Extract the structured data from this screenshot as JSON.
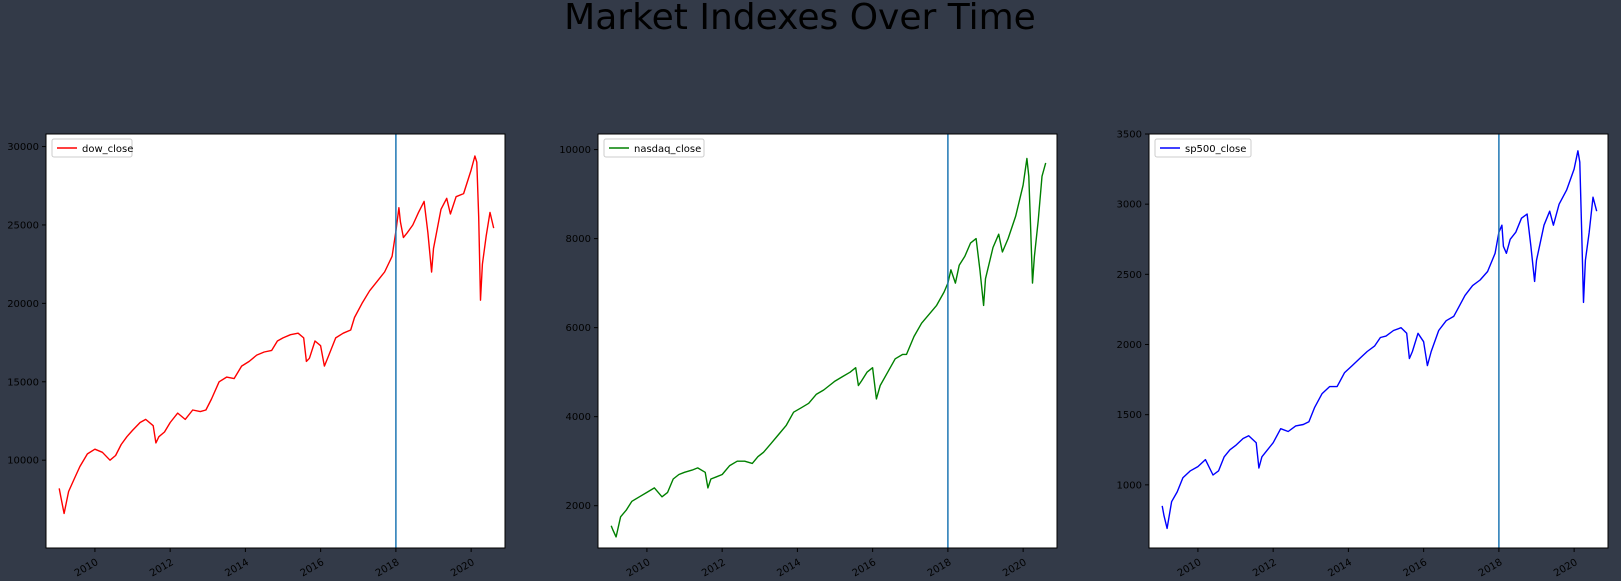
{
  "figure": {
    "title": "Market Indexes Over Time",
    "background": "#333a48",
    "vline_color": "#1f77b4",
    "vline_x": 2018.0
  },
  "chart_data": [
    {
      "type": "line",
      "legend": "dow_close",
      "legend_placement": "top-left",
      "color": "#ff0000",
      "xlim": [
        2008.7,
        2020.9
      ],
      "ylim": [
        4400,
        30800
      ],
      "xticks": [
        2010,
        2012,
        2014,
        2016,
        2018,
        2020
      ],
      "yticks": [
        10000,
        15000,
        20000,
        25000,
        30000
      ],
      "x": [
        2009.05,
        2009.1,
        2009.18,
        2009.3,
        2009.45,
        2009.6,
        2009.8,
        2010.0,
        2010.2,
        2010.4,
        2010.55,
        2010.7,
        2010.85,
        2011.0,
        2011.2,
        2011.35,
        2011.55,
        2011.62,
        2011.7,
        2011.85,
        2012.0,
        2012.2,
        2012.4,
        2012.6,
        2012.8,
        2012.95,
        2013.1,
        2013.3,
        2013.5,
        2013.7,
        2013.9,
        2014.1,
        2014.3,
        2014.5,
        2014.7,
        2014.85,
        2015.0,
        2015.2,
        2015.4,
        2015.55,
        2015.62,
        2015.7,
        2015.85,
        2016.0,
        2016.1,
        2016.2,
        2016.4,
        2016.6,
        2016.8,
        2016.9,
        2017.1,
        2017.3,
        2017.5,
        2017.7,
        2017.9,
        2018.0,
        2018.08,
        2018.12,
        2018.2,
        2018.3,
        2018.45,
        2018.6,
        2018.75,
        2018.85,
        2018.95,
        2019.0,
        2019.2,
        2019.35,
        2019.45,
        2019.6,
        2019.8,
        2020.0,
        2020.1,
        2020.15,
        2020.2,
        2020.25,
        2020.3,
        2020.4,
        2020.5,
        2020.6
      ],
      "y": [
        8200,
        7600,
        6600,
        8000,
        8800,
        9600,
        10400,
        10700,
        10500,
        10000,
        10300,
        11000,
        11500,
        11900,
        12400,
        12600,
        12200,
        11100,
        11500,
        11800,
        12400,
        13000,
        12600,
        13200,
        13100,
        13200,
        13900,
        15000,
        15300,
        15200,
        16000,
        16300,
        16700,
        16900,
        17000,
        17600,
        17800,
        18000,
        18100,
        17800,
        16300,
        16500,
        17600,
        17300,
        16000,
        16600,
        17800,
        18100,
        18300,
        19100,
        20000,
        20800,
        21400,
        22000,
        23000,
        24600,
        26100,
        25200,
        24200,
        24500,
        25000,
        25800,
        26500,
        24500,
        22000,
        23500,
        26000,
        26700,
        25700,
        26800,
        27000,
        28500,
        29400,
        29000,
        25500,
        20200,
        22500,
        24300,
        25800,
        24800
      ]
    },
    {
      "type": "line",
      "legend": "nasdaq_close",
      "legend_placement": "top-left",
      "color": "#008000",
      "xlim": [
        2008.7,
        2020.9
      ],
      "ylim": [
        1050,
        10350
      ],
      "xticks": [
        2010,
        2012,
        2014,
        2016,
        2018,
        2020
      ],
      "yticks": [
        2000,
        4000,
        6000,
        8000,
        10000
      ],
      "x": [
        2009.05,
        2009.1,
        2009.18,
        2009.3,
        2009.45,
        2009.6,
        2009.8,
        2010.0,
        2010.2,
        2010.4,
        2010.55,
        2010.7,
        2010.85,
        2011.0,
        2011.2,
        2011.35,
        2011.55,
        2011.62,
        2011.7,
        2011.85,
        2012.0,
        2012.2,
        2012.4,
        2012.6,
        2012.8,
        2012.95,
        2013.1,
        2013.3,
        2013.5,
        2013.7,
        2013.9,
        2014.1,
        2014.3,
        2014.5,
        2014.7,
        2014.85,
        2015.0,
        2015.2,
        2015.4,
        2015.55,
        2015.62,
        2015.7,
        2015.85,
        2016.0,
        2016.1,
        2016.2,
        2016.4,
        2016.6,
        2016.8,
        2016.9,
        2017.1,
        2017.3,
        2017.5,
        2017.7,
        2017.9,
        2018.0,
        2018.08,
        2018.12,
        2018.2,
        2018.3,
        2018.45,
        2018.6,
        2018.75,
        2018.85,
        2018.95,
        2019.0,
        2019.2,
        2019.35,
        2019.45,
        2019.6,
        2019.8,
        2020.0,
        2020.1,
        2020.15,
        2020.2,
        2020.25,
        2020.3,
        2020.4,
        2020.5,
        2020.6
      ],
      "y": [
        1550,
        1450,
        1300,
        1750,
        1900,
        2100,
        2200,
        2300,
        2400,
        2200,
        2300,
        2600,
        2700,
        2750,
        2800,
        2850,
        2750,
        2400,
        2600,
        2650,
        2700,
        2900,
        3000,
        3000,
        2950,
        3100,
        3200,
        3400,
        3600,
        3800,
        4100,
        4200,
        4300,
        4500,
        4600,
        4700,
        4800,
        4900,
        5000,
        5100,
        4700,
        4800,
        5000,
        5100,
        4400,
        4700,
        5000,
        5300,
        5400,
        5400,
        5800,
        6100,
        6300,
        6500,
        6800,
        7000,
        7300,
        7200,
        7000,
        7400,
        7600,
        7900,
        8000,
        7300,
        6500,
        7100,
        7800,
        8100,
        7700,
        8000,
        8500,
        9200,
        9800,
        9400,
        8200,
        7000,
        7600,
        8400,
        9400,
        9700
      ]
    },
    {
      "type": "line",
      "legend": "sp500_close",
      "legend_placement": "top-left",
      "color": "#0000ff",
      "xlim": [
        2008.7,
        2020.9
      ],
      "ylim": [
        550,
        3500
      ],
      "xticks": [
        2010,
        2012,
        2014,
        2016,
        2018,
        2020
      ],
      "yticks": [
        1000,
        1500,
        2000,
        2500,
        3000,
        3500
      ],
      "x": [
        2009.05,
        2009.1,
        2009.18,
        2009.3,
        2009.45,
        2009.6,
        2009.8,
        2010.0,
        2010.2,
        2010.4,
        2010.55,
        2010.7,
        2010.85,
        2011.0,
        2011.2,
        2011.35,
        2011.55,
        2011.62,
        2011.7,
        2011.85,
        2012.0,
        2012.2,
        2012.4,
        2012.6,
        2012.8,
        2012.95,
        2013.1,
        2013.3,
        2013.5,
        2013.7,
        2013.9,
        2014.1,
        2014.3,
        2014.5,
        2014.7,
        2014.85,
        2015.0,
        2015.2,
        2015.4,
        2015.55,
        2015.62,
        2015.7,
        2015.85,
        2016.0,
        2016.1,
        2016.2,
        2016.4,
        2016.6,
        2016.8,
        2016.9,
        2017.1,
        2017.3,
        2017.5,
        2017.7,
        2017.9,
        2018.0,
        2018.08,
        2018.12,
        2018.2,
        2018.3,
        2018.45,
        2018.6,
        2018.75,
        2018.85,
        2018.95,
        2019.0,
        2019.2,
        2019.35,
        2019.45,
        2019.6,
        2019.8,
        2020.0,
        2020.1,
        2020.15,
        2020.2,
        2020.25,
        2020.3,
        2020.4,
        2020.5,
        2020.6
      ],
      "y": [
        850,
        780,
        690,
        880,
        950,
        1050,
        1100,
        1130,
        1180,
        1070,
        1100,
        1200,
        1250,
        1280,
        1330,
        1350,
        1300,
        1120,
        1200,
        1250,
        1300,
        1400,
        1380,
        1420,
        1430,
        1450,
        1550,
        1650,
        1700,
        1700,
        1800,
        1850,
        1900,
        1950,
        1990,
        2050,
        2060,
        2100,
        2120,
        2080,
        1900,
        1950,
        2080,
        2020,
        1850,
        1950,
        2100,
        2170,
        2200,
        2250,
        2350,
        2420,
        2460,
        2520,
        2650,
        2800,
        2850,
        2700,
        2650,
        2750,
        2800,
        2900,
        2930,
        2700,
        2450,
        2600,
        2850,
        2950,
        2850,
        3000,
        3100,
        3250,
        3380,
        3300,
        2800,
        2300,
        2600,
        2800,
        3050,
        2950
      ]
    }
  ]
}
